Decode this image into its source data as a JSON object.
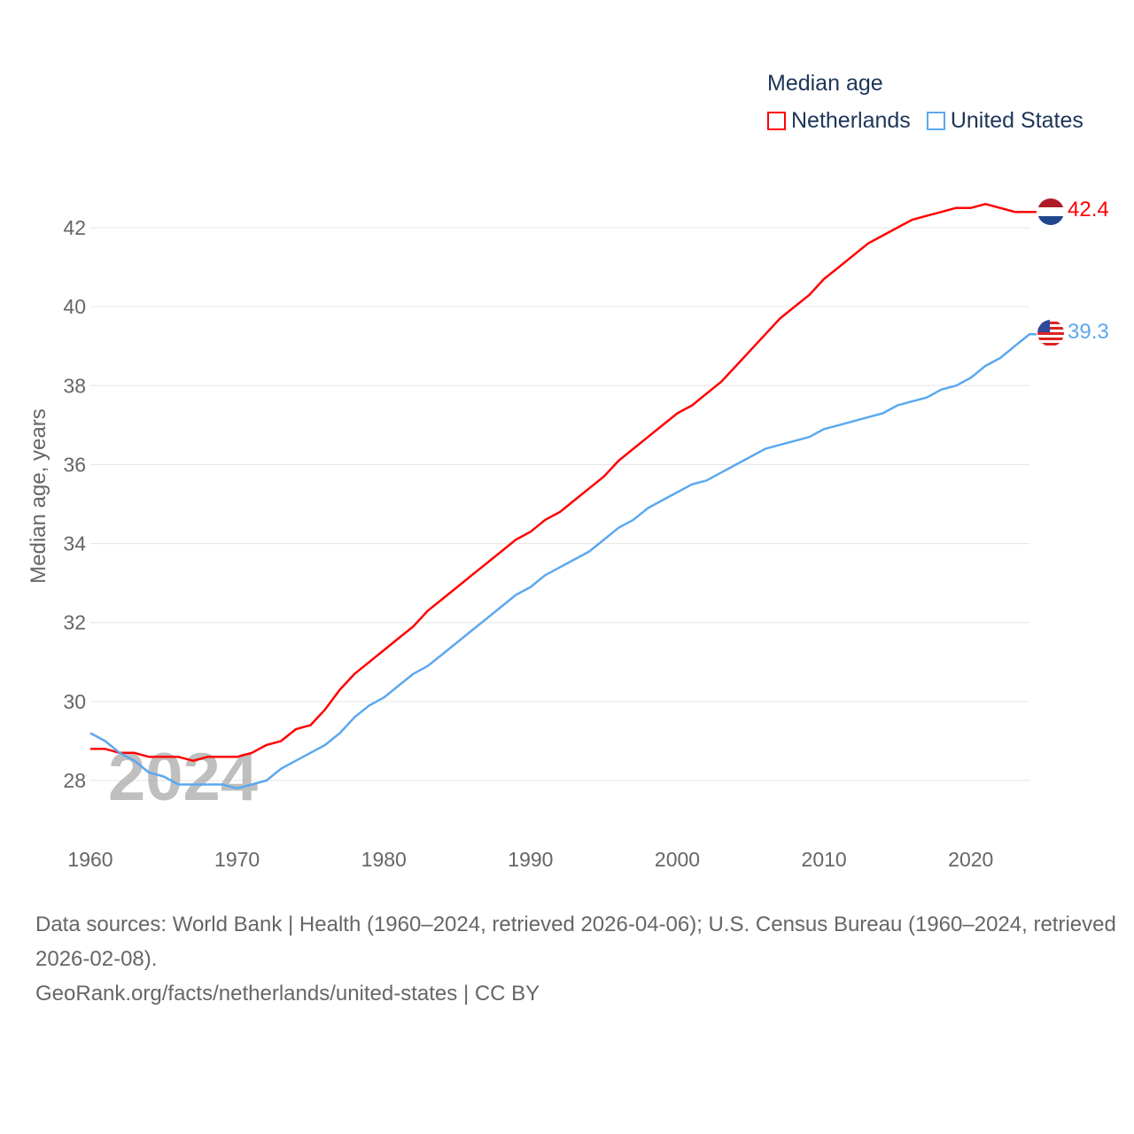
{
  "chart_data": {
    "type": "line",
    "title": "Median age",
    "xlabel": "",
    "ylabel": "Median age, years",
    "xlim": [
      1960,
      2024
    ],
    "ylim": [
      27,
      43
    ],
    "xticks": [
      1960,
      1970,
      1980,
      1990,
      2000,
      2010,
      2020
    ],
    "yticks": [
      28,
      30,
      32,
      34,
      36,
      38,
      40,
      42
    ],
    "grid": true,
    "legend_position": "top-right",
    "watermark_year": "2024",
    "x": [
      1960,
      1961,
      1962,
      1963,
      1964,
      1965,
      1966,
      1967,
      1968,
      1969,
      1970,
      1971,
      1972,
      1973,
      1974,
      1975,
      1976,
      1977,
      1978,
      1979,
      1980,
      1981,
      1982,
      1983,
      1984,
      1985,
      1986,
      1987,
      1988,
      1989,
      1990,
      1991,
      1992,
      1993,
      1994,
      1995,
      1996,
      1997,
      1998,
      1999,
      2000,
      2001,
      2002,
      2003,
      2004,
      2005,
      2006,
      2007,
      2008,
      2009,
      2010,
      2011,
      2012,
      2013,
      2014,
      2015,
      2016,
      2017,
      2018,
      2019,
      2020,
      2021,
      2022,
      2023,
      2024
    ],
    "series": [
      {
        "name": "Netherlands",
        "color": "#ff0000",
        "end_label": "42.4",
        "values": [
          28.8,
          28.8,
          28.7,
          28.7,
          28.6,
          28.6,
          28.6,
          28.5,
          28.6,
          28.6,
          28.6,
          28.7,
          28.9,
          29.0,
          29.3,
          29.4,
          29.8,
          30.3,
          30.7,
          31.0,
          31.3,
          31.6,
          31.9,
          32.3,
          32.6,
          32.9,
          33.2,
          33.5,
          33.8,
          34.1,
          34.3,
          34.6,
          34.8,
          35.1,
          35.4,
          35.7,
          36.1,
          36.4,
          36.7,
          37.0,
          37.3,
          37.5,
          37.8,
          38.1,
          38.5,
          38.9,
          39.3,
          39.7,
          40.0,
          40.3,
          40.7,
          41.0,
          41.3,
          41.6,
          41.8,
          42.0,
          42.2,
          42.3,
          42.4,
          42.5,
          42.5,
          42.6,
          42.5,
          42.4,
          42.4
        ]
      },
      {
        "name": "United States",
        "color": "#5ba8ef",
        "end_label": "39.3",
        "values": [
          29.2,
          29.0,
          28.7,
          28.5,
          28.2,
          28.1,
          27.9,
          27.9,
          27.9,
          27.9,
          27.8,
          27.9,
          28.0,
          28.3,
          28.5,
          28.7,
          28.9,
          29.2,
          29.6,
          29.9,
          30.1,
          30.4,
          30.7,
          30.9,
          31.2,
          31.5,
          31.8,
          32.1,
          32.4,
          32.7,
          32.9,
          33.2,
          33.4,
          33.6,
          33.8,
          34.1,
          34.4,
          34.6,
          34.9,
          35.1,
          35.3,
          35.5,
          35.6,
          35.8,
          36.0,
          36.2,
          36.4,
          36.5,
          36.6,
          36.7,
          36.9,
          37.0,
          37.1,
          37.2,
          37.3,
          37.5,
          37.6,
          37.7,
          37.9,
          38.0,
          38.2,
          38.5,
          38.7,
          39.0,
          39.3
        ]
      }
    ]
  },
  "footer": {
    "sources": "Data sources: World Bank | Health (1960–2024, retrieved 2026-04-06); U.S. Census Bureau (1960–2024, retrieved 2026-02-08).",
    "credit": "GeoRank.org/facts/netherlands/united-states | CC BY"
  }
}
